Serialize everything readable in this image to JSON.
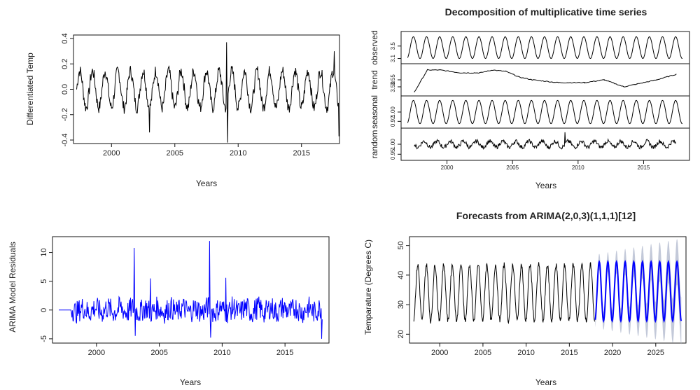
{
  "chart_data": [
    {
      "type": "line",
      "title": "",
      "xlabel": "Years",
      "ylabel": "Differentiated Temp",
      "xlim": [
        1997,
        2018
      ],
      "ylim": [
        -0.4,
        0.4
      ],
      "xticks": [
        "2000",
        "2005",
        "2010",
        "2015"
      ],
      "yticks": [
        "-0.4",
        "-0.2",
        "0.0",
        "0.2",
        "0.4"
      ],
      "series": [
        {
          "color": "#000000",
          "start": 1997.25,
          "freq": 12,
          "amplitude": 0.16,
          "spikes": [
            [
              2003.0,
              -0.34
            ],
            [
              2009.1,
              0.37
            ],
            [
              2009.15,
              -0.42
            ],
            [
              2017.6,
              0.3
            ],
            [
              2017.95,
              -0.37
            ]
          ]
        }
      ]
    },
    {
      "type": "line",
      "title": "Decomposition of multiplicative time series",
      "xlabel": "Years",
      "xlim": [
        1996.5,
        2018.5
      ],
      "xticks": [
        "2000",
        "2005",
        "2010",
        "2015"
      ],
      "panels": [
        {
          "name": "observed",
          "ylim": [
            3.0,
            3.9
          ],
          "yticks": [
            "3.5",
            "3.1"
          ],
          "kind": "seasonal",
          "center": 3.45,
          "amplitude": 0.35
        },
        {
          "name": "trend",
          "ylim": [
            3.45,
            3.65
          ],
          "yticks": [
            "3.50",
            "3.55"
          ],
          "kind": "trend",
          "points": [
            [
              1997.5,
              3.46
            ],
            [
              1998.5,
              3.62
            ],
            [
              1999.5,
              3.62
            ],
            [
              2001,
              3.6
            ],
            [
              2002.5,
              3.6
            ],
            [
              2003.5,
              3.62
            ],
            [
              2004.5,
              3.61
            ],
            [
              2005.5,
              3.57
            ],
            [
              2006.5,
              3.55
            ],
            [
              2008.5,
              3.53
            ],
            [
              2010.5,
              3.53
            ],
            [
              2012,
              3.55
            ],
            [
              2013.5,
              3.5
            ],
            [
              2014.5,
              3.52
            ],
            [
              2016,
              3.55
            ],
            [
              2017.5,
              3.59
            ]
          ]
        },
        {
          "name": "seasonal",
          "ylim": [
            0.88,
            1.12
          ],
          "yticks": [
            "0.92",
            "1.00"
          ],
          "kind": "seasonal",
          "center": 1.0,
          "amplitude": 0.1
        },
        {
          "name": "random",
          "ylim": [
            0.93,
            1.07
          ],
          "yticks": [
            "0.95",
            "1.00"
          ],
          "kind": "noise",
          "center": 1.0,
          "amplitude": 0.025
        }
      ]
    },
    {
      "type": "line",
      "title": "",
      "xlabel": "Years",
      "ylabel": "ARIMA Model Residuals",
      "xlim": [
        1996.5,
        2018.5
      ],
      "ylim": [
        -5.5,
        12.5
      ],
      "xticks": [
        "2000",
        "2005",
        "2010",
        "2015"
      ],
      "yticks": [
        "-5",
        "0",
        "5",
        "10"
      ],
      "series": [
        {
          "color": "#0000ff",
          "start": 1997.0,
          "flat_until": 1998.0,
          "spikes": [
            [
              2003.0,
              10.8
            ],
            [
              2003.1,
              -4.5
            ],
            [
              2004.3,
              5.5
            ],
            [
              2009.0,
              12.0
            ],
            [
              2009.1,
              -4.8
            ],
            [
              2010.3,
              5.6
            ],
            [
              2017.9,
              -5.0
            ]
          ]
        }
      ]
    },
    {
      "type": "line",
      "title": "Forecasts from ARIMA(2,0,3)(1,1,1)[12]",
      "xlabel": "Years",
      "ylabel": "Temparature (Degrees C)",
      "xlim": [
        1996.5,
        2028.5
      ],
      "ylim": [
        17,
        53
      ],
      "xticks": [
        "2000",
        "2005",
        "2010",
        "2015",
        "2020",
        "2025"
      ],
      "yticks": [
        "20",
        "30",
        "40",
        "50"
      ],
      "series": [
        {
          "name": "history",
          "color": "#000000",
          "start": 1997.0,
          "end": 2018.0,
          "center": 34,
          "amplitude": 9.5
        },
        {
          "name": "forecast",
          "color": "#0000ff",
          "start": 2018.0,
          "end": 2028.0,
          "center": 34.5,
          "amplitude": 10
        },
        {
          "name": "interval",
          "color": "#b9bfd2",
          "start": 2018.0,
          "end": 2028.0,
          "lo_spread": 2.5,
          "hi_spread": 8
        }
      ]
    }
  ]
}
